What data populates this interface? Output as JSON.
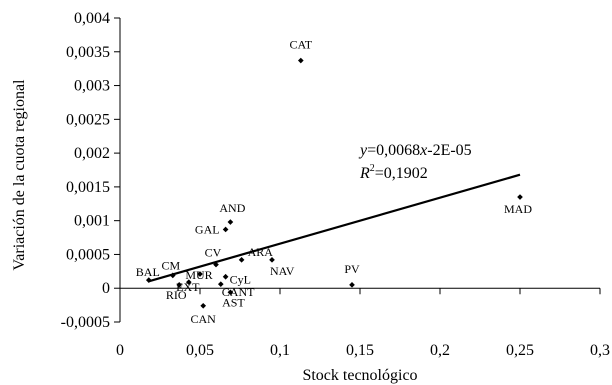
{
  "chart_data": {
    "type": "scatter",
    "xlabel": "Stock tecnológico",
    "ylabel": "Variación de la cuota regional",
    "xlim": [
      0,
      0.3
    ],
    "ylim": [
      -0.0005,
      0.004
    ],
    "x_ticks": [
      "0",
      "0,05",
      "0,1",
      "0,15",
      "0,2",
      "0,25",
      "0,3"
    ],
    "y_ticks": [
      "-0,0005",
      "0",
      "0,0005",
      "0,001",
      "0,0015",
      "0,002",
      "0,0025",
      "0,003",
      "0,0035",
      "0,004"
    ],
    "points": [
      {
        "label": "CAT",
        "x": 0.113,
        "y": 0.00337
      },
      {
        "label": "MAD",
        "x": 0.25,
        "y": 0.00135
      },
      {
        "label": "AND",
        "x": 0.069,
        "y": 0.00098
      },
      {
        "label": "GAL",
        "x": 0.066,
        "y": 0.00087
      },
      {
        "label": "ARA",
        "x": 0.076,
        "y": 0.00042
      },
      {
        "label": "CV",
        "x": 0.06,
        "y": 0.00035
      },
      {
        "label": "NAV",
        "x": 0.095,
        "y": 0.00042
      },
      {
        "label": "MUR",
        "x": 0.05,
        "y": 0.00021
      },
      {
        "label": "CyL",
        "x": 0.066,
        "y": 0.00017
      },
      {
        "label": "CM",
        "x": 0.033,
        "y": 0.00019
      },
      {
        "label": "BAL",
        "x": 0.018,
        "y": 0.00012
      },
      {
        "label": "EXT",
        "x": 0.043,
        "y": 9e-05
      },
      {
        "label": "RIO",
        "x": 0.037,
        "y": 5e-05
      },
      {
        "label": "CANT",
        "x": 0.063,
        "y": 6e-05
      },
      {
        "label": "PV",
        "x": 0.145,
        "y": 5e-05
      },
      {
        "label": "AST",
        "x": 0.069,
        "y": -6e-05
      },
      {
        "label": "CAN",
        "x": 0.052,
        "y": -0.00026
      }
    ],
    "trendline": {
      "slope": 0.0068,
      "intercept": -2e-05,
      "x_range": [
        0.018,
        0.25
      ]
    },
    "equation": {
      "y_part": "y",
      "eq_part": "=0,0068",
      "x_part": "x",
      "rest_part": "-2E-05",
      "r_part": "R",
      "r_sup": "2",
      "r_value": "=0,1902"
    }
  }
}
